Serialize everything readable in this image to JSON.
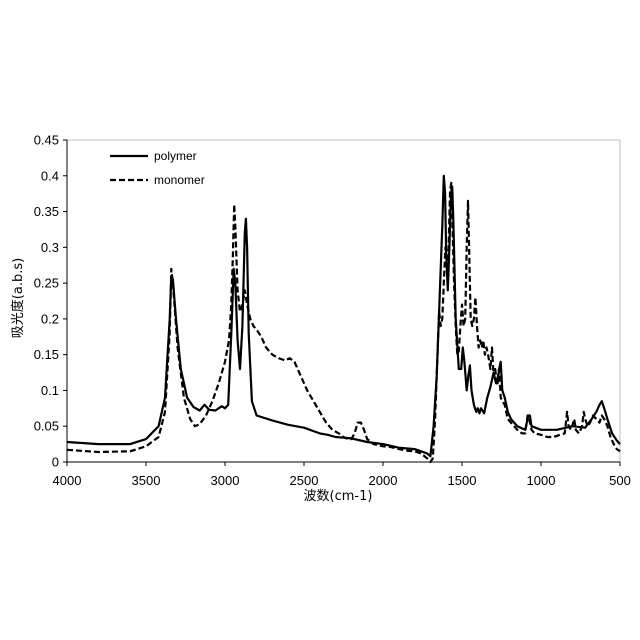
{
  "chart_data": {
    "type": "line",
    "xlabel": "波数(cm-1)",
    "ylabel": "吸光度(a.b.s)",
    "xlim": [
      4000,
      500
    ],
    "ylim": [
      0,
      0.45
    ],
    "x_reversed": true,
    "x_ticks": [
      "4000",
      "3500",
      "3000",
      "2500",
      "2000",
      "1500",
      "1000",
      "500"
    ],
    "y_ticks": [
      "0",
      "0.05",
      "0.1",
      "0.15",
      "0.2",
      "0.25",
      "0.3",
      "0.35",
      "0.4",
      "0.45"
    ],
    "grid": false,
    "legend_position": "top-left",
    "series": [
      {
        "name": "polymer",
        "style": "solid",
        "points": [
          [
            4000,
            0.028
          ],
          [
            3800,
            0.025
          ],
          [
            3600,
            0.025
          ],
          [
            3500,
            0.032
          ],
          [
            3420,
            0.05
          ],
          [
            3380,
            0.09
          ],
          [
            3350,
            0.2
          ],
          [
            3340,
            0.26
          ],
          [
            3330,
            0.255
          ],
          [
            3310,
            0.2
          ],
          [
            3280,
            0.13
          ],
          [
            3240,
            0.09
          ],
          [
            3200,
            0.077
          ],
          [
            3160,
            0.072
          ],
          [
            3130,
            0.08
          ],
          [
            3100,
            0.073
          ],
          [
            3060,
            0.072
          ],
          [
            3020,
            0.078
          ],
          [
            3000,
            0.075
          ],
          [
            2980,
            0.08
          ],
          [
            2960,
            0.18
          ],
          [
            2945,
            0.27
          ],
          [
            2935,
            0.25
          ],
          [
            2920,
            0.17
          ],
          [
            2905,
            0.13
          ],
          [
            2890,
            0.19
          ],
          [
            2875,
            0.32
          ],
          [
            2868,
            0.34
          ],
          [
            2860,
            0.3
          ],
          [
            2850,
            0.18
          ],
          [
            2830,
            0.085
          ],
          [
            2800,
            0.065
          ],
          [
            2700,
            0.058
          ],
          [
            2600,
            0.052
          ],
          [
            2500,
            0.048
          ],
          [
            2400,
            0.04
          ],
          [
            2350,
            0.038
          ],
          [
            2300,
            0.035
          ],
          [
            2250,
            0.034
          ],
          [
            2200,
            0.033
          ],
          [
            2100,
            0.028
          ],
          [
            2000,
            0.025
          ],
          [
            1900,
            0.02
          ],
          [
            1800,
            0.018
          ],
          [
            1720,
            0.012
          ],
          [
            1700,
            0.008
          ],
          [
            1680,
            0.05
          ],
          [
            1660,
            0.12
          ],
          [
            1640,
            0.24
          ],
          [
            1625,
            0.33
          ],
          [
            1615,
            0.4
          ],
          [
            1607,
            0.375
          ],
          [
            1600,
            0.29
          ],
          [
            1590,
            0.24
          ],
          [
            1580,
            0.3
          ],
          [
            1570,
            0.37
          ],
          [
            1562,
            0.385
          ],
          [
            1555,
            0.34
          ],
          [
            1540,
            0.2
          ],
          [
            1520,
            0.13
          ],
          [
            1505,
            0.13
          ],
          [
            1495,
            0.16
          ],
          [
            1485,
            0.14
          ],
          [
            1470,
            0.1
          ],
          [
            1460,
            0.12
          ],
          [
            1450,
            0.135
          ],
          [
            1440,
            0.1
          ],
          [
            1425,
            0.08
          ],
          [
            1410,
            0.07
          ],
          [
            1400,
            0.075
          ],
          [
            1390,
            0.068
          ],
          [
            1380,
            0.075
          ],
          [
            1360,
            0.068
          ],
          [
            1340,
            0.09
          ],
          [
            1320,
            0.105
          ],
          [
            1300,
            0.125
          ],
          [
            1285,
            0.11
          ],
          [
            1275,
            0.11
          ],
          [
            1265,
            0.13
          ],
          [
            1255,
            0.14
          ],
          [
            1245,
            0.1
          ],
          [
            1230,
            0.09
          ],
          [
            1210,
            0.07
          ],
          [
            1190,
            0.06
          ],
          [
            1150,
            0.05
          ],
          [
            1100,
            0.045
          ],
          [
            1080,
            0.065
          ],
          [
            1070,
            0.065
          ],
          [
            1060,
            0.05
          ],
          [
            1000,
            0.045
          ],
          [
            900,
            0.045
          ],
          [
            800,
            0.05
          ],
          [
            720,
            0.048
          ],
          [
            680,
            0.06
          ],
          [
            650,
            0.07
          ],
          [
            630,
            0.08
          ],
          [
            615,
            0.085
          ],
          [
            600,
            0.075
          ],
          [
            580,
            0.06
          ],
          [
            550,
            0.04
          ],
          [
            520,
            0.03
          ],
          [
            500,
            0.025
          ]
        ]
      },
      {
        "name": "monomer",
        "style": "dashed",
        "points": [
          [
            4000,
            0.017
          ],
          [
            3800,
            0.014
          ],
          [
            3600,
            0.015
          ],
          [
            3500,
            0.022
          ],
          [
            3420,
            0.035
          ],
          [
            3380,
            0.07
          ],
          [
            3350,
            0.18
          ],
          [
            3340,
            0.27
          ],
          [
            3330,
            0.25
          ],
          [
            3300,
            0.16
          ],
          [
            3260,
            0.09
          ],
          [
            3220,
            0.06
          ],
          [
            3190,
            0.05
          ],
          [
            3160,
            0.053
          ],
          [
            3120,
            0.065
          ],
          [
            3080,
            0.085
          ],
          [
            3040,
            0.11
          ],
          [
            3000,
            0.14
          ],
          [
            2975,
            0.17
          ],
          [
            2960,
            0.22
          ],
          [
            2950,
            0.29
          ],
          [
            2942,
            0.36
          ],
          [
            2935,
            0.33
          ],
          [
            2920,
            0.24
          ],
          [
            2905,
            0.21
          ],
          [
            2890,
            0.22
          ],
          [
            2875,
            0.24
          ],
          [
            2860,
            0.22
          ],
          [
            2840,
            0.2
          ],
          [
            2820,
            0.19
          ],
          [
            2800,
            0.185
          ],
          [
            2770,
            0.175
          ],
          [
            2740,
            0.16
          ],
          [
            2700,
            0.15
          ],
          [
            2660,
            0.145
          ],
          [
            2620,
            0.142
          ],
          [
            2590,
            0.145
          ],
          [
            2560,
            0.14
          ],
          [
            2520,
            0.12
          ],
          [
            2480,
            0.1
          ],
          [
            2440,
            0.085
          ],
          [
            2400,
            0.07
          ],
          [
            2360,
            0.055
          ],
          [
            2320,
            0.045
          ],
          [
            2280,
            0.04
          ],
          [
            2250,
            0.035
          ],
          [
            2220,
            0.032
          ],
          [
            2200,
            0.032
          ],
          [
            2180,
            0.04
          ],
          [
            2160,
            0.055
          ],
          [
            2140,
            0.055
          ],
          [
            2120,
            0.045
          ],
          [
            2100,
            0.032
          ],
          [
            2060,
            0.025
          ],
          [
            2000,
            0.022
          ],
          [
            1950,
            0.021
          ],
          [
            1900,
            0.018
          ],
          [
            1850,
            0.016
          ],
          [
            1800,
            0.015
          ],
          [
            1760,
            0.012
          ],
          [
            1720,
            0.005
          ],
          [
            1700,
            0.0
          ],
          [
            1685,
            0.005
          ],
          [
            1670,
            0.06
          ],
          [
            1655,
            0.15
          ],
          [
            1645,
            0.21
          ],
          [
            1635,
            0.19
          ],
          [
            1625,
            0.2
          ],
          [
            1615,
            0.25
          ],
          [
            1605,
            0.3
          ],
          [
            1595,
            0.28
          ],
          [
            1585,
            0.3
          ],
          [
            1575,
            0.38
          ],
          [
            1568,
            0.39
          ],
          [
            1560,
            0.33
          ],
          [
            1550,
            0.25
          ],
          [
            1540,
            0.19
          ],
          [
            1530,
            0.15
          ],
          [
            1520,
            0.155
          ],
          [
            1510,
            0.19
          ],
          [
            1500,
            0.22
          ],
          [
            1490,
            0.19
          ],
          [
            1480,
            0.2
          ],
          [
            1470,
            0.3
          ],
          [
            1462,
            0.365
          ],
          [
            1455,
            0.3
          ],
          [
            1445,
            0.2
          ],
          [
            1435,
            0.19
          ],
          [
            1425,
            0.2
          ],
          [
            1415,
            0.23
          ],
          [
            1405,
            0.19
          ],
          [
            1395,
            0.16
          ],
          [
            1385,
            0.17
          ],
          [
            1375,
            0.16
          ],
          [
            1365,
            0.17
          ],
          [
            1355,
            0.15
          ],
          [
            1345,
            0.16
          ],
          [
            1335,
            0.15
          ],
          [
            1320,
            0.13
          ],
          [
            1310,
            0.16
          ],
          [
            1300,
            0.12
          ],
          [
            1290,
            0.13
          ],
          [
            1280,
            0.11
          ],
          [
            1265,
            0.13
          ],
          [
            1255,
            0.09
          ],
          [
            1245,
            0.085
          ],
          [
            1230,
            0.08
          ],
          [
            1210,
            0.06
          ],
          [
            1190,
            0.055
          ],
          [
            1170,
            0.05
          ],
          [
            1150,
            0.045
          ],
          [
            1120,
            0.04
          ],
          [
            1100,
            0.04
          ],
          [
            1085,
            0.065
          ],
          [
            1075,
            0.06
          ],
          [
            1060,
            0.045
          ],
          [
            1040,
            0.04
          ],
          [
            1000,
            0.038
          ],
          [
            960,
            0.035
          ],
          [
            920,
            0.035
          ],
          [
            880,
            0.038
          ],
          [
            850,
            0.04
          ],
          [
            835,
            0.07
          ],
          [
            825,
            0.05
          ],
          [
            810,
            0.045
          ],
          [
            790,
            0.06
          ],
          [
            780,
            0.045
          ],
          [
            760,
            0.04
          ],
          [
            740,
            0.05
          ],
          [
            730,
            0.07
          ],
          [
            720,
            0.06
          ],
          [
            705,
            0.05
          ],
          [
            690,
            0.055
          ],
          [
            670,
            0.065
          ],
          [
            650,
            0.06
          ],
          [
            630,
            0.055
          ],
          [
            615,
            0.065
          ],
          [
            600,
            0.06
          ],
          [
            580,
            0.05
          ],
          [
            560,
            0.035
          ],
          [
            540,
            0.025
          ],
          [
            520,
            0.018
          ],
          [
            500,
            0.015
          ]
        ]
      }
    ]
  }
}
